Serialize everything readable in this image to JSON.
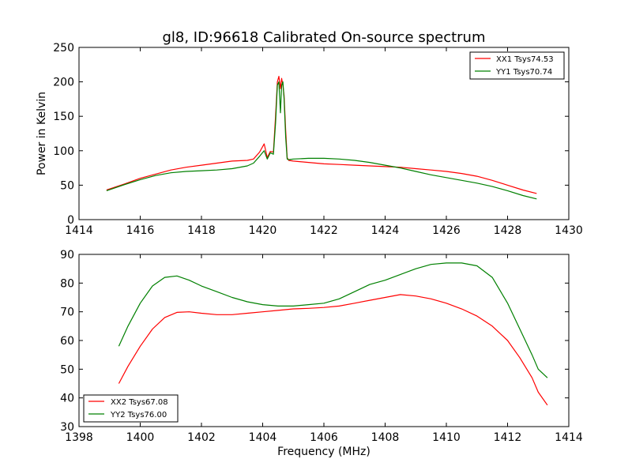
{
  "chart_data": [
    {
      "type": "line",
      "title": "gl8, ID:96618 Calibrated On-source spectrum",
      "xlabel": "",
      "ylabel": "Power in Kelvin",
      "xlim": [
        1414,
        1430
      ],
      "ylim": [
        0,
        250
      ],
      "xticks": [
        "1414",
        "1416",
        "1418",
        "1420",
        "1422",
        "1424",
        "1426",
        "1428",
        "1430"
      ],
      "yticks": [
        "0",
        "50",
        "100",
        "150",
        "200",
        "250"
      ],
      "legend_position": "top-right",
      "grid": false,
      "series": [
        {
          "name": "XX1 Tsys74.53",
          "color": "#ff0000",
          "x": [
            1414.9,
            1415.5,
            1416.0,
            1416.5,
            1417.0,
            1417.5,
            1418.0,
            1418.5,
            1419.0,
            1419.5,
            1419.7,
            1419.9,
            1420.05,
            1420.15,
            1420.25,
            1420.35,
            1420.42,
            1420.48,
            1420.53,
            1420.58,
            1420.62,
            1420.66,
            1420.7,
            1420.75,
            1420.8,
            1420.85,
            1421.0,
            1421.5,
            1422.0,
            1422.5,
            1423.0,
            1423.5,
            1424.0,
            1424.5,
            1425.0,
            1425.5,
            1426.0,
            1426.5,
            1427.0,
            1427.5,
            1428.0,
            1428.5,
            1428.95
          ],
          "values": [
            43,
            52,
            60,
            66,
            72,
            76,
            79,
            82,
            85,
            86,
            88,
            98,
            110,
            90,
            99,
            98,
            150,
            200,
            208,
            190,
            205,
            195,
            180,
            130,
            90,
            86,
            85,
            83,
            81,
            80,
            79,
            78,
            77,
            76,
            74,
            72,
            70,
            67,
            63,
            57,
            50,
            43,
            38
          ]
        },
        {
          "name": "YY1 Tsys70.74",
          "color": "#008000",
          "x": [
            1414.9,
            1415.5,
            1416.0,
            1416.5,
            1417.0,
            1417.5,
            1418.0,
            1418.5,
            1419.0,
            1419.5,
            1419.7,
            1419.9,
            1420.05,
            1420.15,
            1420.25,
            1420.35,
            1420.42,
            1420.48,
            1420.53,
            1420.58,
            1420.62,
            1420.66,
            1420.7,
            1420.75,
            1420.8,
            1420.85,
            1421.0,
            1421.5,
            1422.0,
            1422.5,
            1423.0,
            1423.5,
            1424.0,
            1424.5,
            1425.0,
            1425.5,
            1426.0,
            1426.5,
            1427.0,
            1427.5,
            1428.0,
            1428.5,
            1428.95
          ],
          "values": [
            42,
            51,
            58,
            64,
            68,
            70,
            71,
            72,
            74,
            78,
            82,
            92,
            100,
            88,
            97,
            95,
            140,
            195,
            200,
            155,
            195,
            200,
            175,
            120,
            88,
            87,
            88,
            89,
            89,
            88,
            86,
            83,
            79,
            75,
            70,
            65,
            61,
            57,
            53,
            48,
            42,
            35,
            30
          ]
        }
      ]
    },
    {
      "type": "line",
      "title": "",
      "xlabel": "Frequency (MHz)",
      "ylabel": "",
      "xlim": [
        1398,
        1414
      ],
      "ylim": [
        30,
        90
      ],
      "xticks": [
        "1398",
        "1400",
        "1402",
        "1404",
        "1406",
        "1408",
        "1410",
        "1412",
        "1414"
      ],
      "yticks": [
        "30",
        "40",
        "50",
        "60",
        "70",
        "80",
        "90"
      ],
      "legend_position": "bottom-left",
      "grid": false,
      "series": [
        {
          "name": "XX2 Tsys67.08",
          "color": "#ff0000",
          "x": [
            1399.3,
            1399.6,
            1400.0,
            1400.4,
            1400.8,
            1401.2,
            1401.6,
            1402.0,
            1402.5,
            1403.0,
            1403.5,
            1404.0,
            1404.5,
            1405.0,
            1405.5,
            1406.0,
            1406.5,
            1407.0,
            1407.5,
            1408.0,
            1408.5,
            1409.0,
            1409.5,
            1410.0,
            1410.5,
            1411.0,
            1411.5,
            1412.0,
            1412.4,
            1412.8,
            1413.0,
            1413.3
          ],
          "values": [
            45,
            51,
            58,
            64,
            68,
            69.8,
            70,
            69.5,
            69,
            69,
            69.5,
            70,
            70.5,
            71,
            71.2,
            71.5,
            72,
            73,
            74,
            75,
            76,
            75.5,
            74.5,
            73,
            71,
            68.5,
            65,
            60,
            54,
            47,
            42,
            37.5
          ]
        },
        {
          "name": "YY2 Tsys76.00",
          "color": "#008000",
          "x": [
            1399.3,
            1399.6,
            1400.0,
            1400.4,
            1400.8,
            1401.2,
            1401.6,
            1402.0,
            1402.5,
            1403.0,
            1403.5,
            1404.0,
            1404.5,
            1405.0,
            1405.5,
            1406.0,
            1406.5,
            1407.0,
            1407.5,
            1408.0,
            1408.5,
            1409.0,
            1409.5,
            1410.0,
            1410.5,
            1411.0,
            1411.5,
            1412.0,
            1412.4,
            1412.8,
            1413.0,
            1413.3
          ],
          "values": [
            58,
            65,
            73,
            79,
            82,
            82.5,
            81,
            79,
            77,
            75,
            73.5,
            72.5,
            72,
            72,
            72.5,
            73,
            74.5,
            77,
            79.5,
            81,
            83,
            85,
            86.5,
            87,
            87,
            86,
            82,
            73,
            64,
            55,
            50,
            47
          ]
        }
      ]
    }
  ]
}
